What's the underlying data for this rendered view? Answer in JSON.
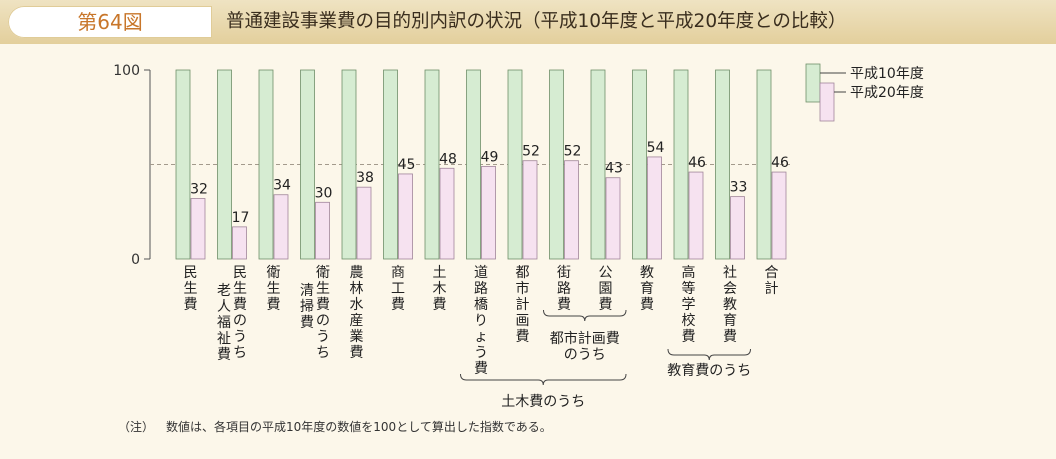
{
  "header": {
    "figure_number": "第64図",
    "title": "普通建設事業費の目的別内訳の状況（平成10年度と平成20年度との比較）"
  },
  "chart_data": {
    "type": "bar",
    "title": "普通建設事業費の目的別内訳の状況（平成10年度と平成20年度との比較）",
    "ylim": [
      0,
      100
    ],
    "yticks": [
      0,
      100
    ],
    "reference_line": 50,
    "categories": [
      "民生費",
      "民生費のうち老人福祉費",
      "衛生費",
      "衛生費のうち清掃費",
      "農林水産業費",
      "商工費",
      "土木費",
      "道路橋りょう費",
      "都市計画費",
      "街路費",
      "公園費",
      "教育費",
      "高等学校費",
      "社会教育費",
      "合計"
    ],
    "category_label_columns": [
      [
        "民生費"
      ],
      [
        "民生費のうち",
        "老人福祉費"
      ],
      [
        "衛生費"
      ],
      [
        "衛生費のうち",
        "清掃費"
      ],
      [
        "農林水産業費"
      ],
      [
        "商工費"
      ],
      [
        "土木費"
      ],
      [
        "道路橋りょう費"
      ],
      [
        "都市計画費"
      ],
      [
        "街路費"
      ],
      [
        "公園費"
      ],
      [
        "教育費"
      ],
      [
        "高等学校費"
      ],
      [
        "社会教育費"
      ],
      [
        "合計"
      ]
    ],
    "series": [
      {
        "name": "平成10年度",
        "color": "#d6ecd2",
        "values": [
          100,
          100,
          100,
          100,
          100,
          100,
          100,
          100,
          100,
          100,
          100,
          100,
          100,
          100,
          100
        ]
      },
      {
        "name": "平成20年度",
        "color": "#f6e2f0",
        "values": [
          32,
          17,
          34,
          30,
          38,
          45,
          48,
          49,
          52,
          52,
          43,
          54,
          46,
          33,
          46
        ]
      }
    ],
    "legend_position": "top-right",
    "groups": [
      {
        "label": "都市計画費のうち",
        "from": 9,
        "to": 10
      },
      {
        "label": "土木費のうち",
        "from": 7,
        "to": 10
      },
      {
        "label": "教育費のうち",
        "from": 12,
        "to": 13
      }
    ]
  },
  "note": {
    "label": "（注）",
    "text": "数値は、各項目の平成10年度の数値を100として算出した指数である。"
  }
}
